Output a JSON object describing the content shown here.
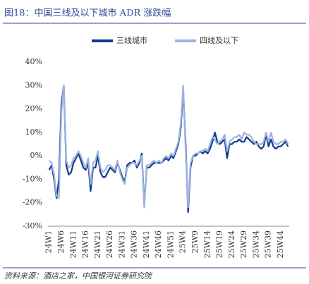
{
  "chart_data": {
    "type": "line",
    "title": "图18：中国三线及以下城市 ADR 涨跌幅",
    "source": "资料来源：酒店之家，中国银河证券研究院",
    "categories": [
      "24W1",
      null,
      null,
      null,
      null,
      "24W6",
      null,
      null,
      null,
      null,
      "24W11",
      null,
      null,
      null,
      null,
      "24W16",
      null,
      null,
      null,
      null,
      "24W21",
      null,
      null,
      null,
      null,
      "24W26",
      null,
      null,
      null,
      null,
      "24W31",
      null,
      null,
      null,
      null,
      "24W36",
      null,
      null,
      null,
      null,
      "24W41",
      null,
      null,
      null,
      null,
      "24W46",
      null,
      null,
      null,
      null,
      "24W51",
      null,
      null,
      null,
      null,
      "25W4",
      null,
      null,
      null,
      null,
      "25W9",
      null,
      null,
      null,
      null,
      "25W14",
      null,
      null,
      null,
      null,
      "25W19",
      null,
      null,
      null,
      null,
      "25W24",
      null,
      null,
      null,
      null,
      "25W29",
      null,
      null,
      null,
      null,
      "25W34",
      null,
      null,
      null,
      null,
      "25W39",
      null,
      null,
      null,
      null,
      "25W44",
      null,
      null,
      null
    ],
    "series": [
      {
        "name": "三线城市",
        "color": "#123a8c",
        "values": [
          -6,
          -4,
          -10,
          -18,
          -10,
          22,
          30,
          -4,
          -8,
          -7,
          -3,
          -1,
          1,
          -2,
          -5,
          -6,
          -3,
          -15,
          -5,
          -5,
          0,
          -7,
          -9,
          -9,
          -7,
          -5,
          -6,
          -7,
          -3,
          -6,
          -9,
          -11,
          -4,
          -3,
          -3,
          -2,
          -5,
          -3,
          1,
          -21,
          -5,
          -5,
          -4,
          -3,
          -3,
          -3,
          -3,
          -2,
          -1,
          -2,
          0,
          -1,
          2,
          5,
          12,
          28,
          5,
          -24,
          -5,
          0,
          0,
          1,
          2,
          1,
          2,
          1,
          3,
          6,
          10,
          6,
          5,
          6,
          7,
          -1,
          5,
          5,
          6,
          6,
          7,
          6,
          6,
          8,
          7,
          6,
          5,
          6,
          4,
          3,
          4,
          9,
          4,
          7,
          4,
          3,
          4,
          4,
          5,
          6,
          4
        ]
      },
      {
        "name": "四线及以下",
        "color": "#9db3e0",
        "values": [
          -2,
          -3,
          -8,
          -17,
          -18,
          18,
          30,
          -2,
          -5,
          -4,
          -1,
          0,
          2,
          0,
          -3,
          -5,
          -1,
          -12,
          -3,
          -2,
          2,
          -5,
          -7,
          -6,
          -4,
          -4,
          -5,
          -6,
          -2,
          -7,
          -10,
          -12,
          -5,
          -4,
          -3,
          -3,
          -4,
          -2,
          0,
          -22,
          -4,
          -4,
          -3,
          -2,
          -3,
          -2,
          -3,
          -1,
          0,
          -1,
          1,
          0,
          3,
          6,
          14,
          30,
          2,
          -22,
          -3,
          0,
          1,
          1,
          2,
          2,
          3,
          2,
          5,
          8,
          7,
          5,
          6,
          7,
          9,
          2,
          6,
          7,
          8,
          8,
          9,
          7,
          10,
          9,
          9,
          8,
          6,
          5,
          5,
          5,
          6,
          10,
          6,
          10,
          6,
          5,
          5,
          6,
          6,
          7,
          5
        ]
      }
    ],
    "ylim": [
      -30,
      40
    ],
    "yticks": [
      {
        "value": -30,
        "label": "-30%"
      },
      {
        "value": -20,
        "label": "-20%"
      },
      {
        "value": -10,
        "label": "-10%"
      },
      {
        "value": 0,
        "label": "0%"
      },
      {
        "value": 10,
        "label": "10%"
      },
      {
        "value": 20,
        "label": "20%"
      },
      {
        "value": 30,
        "label": "30%"
      },
      {
        "value": 40,
        "label": "40%"
      }
    ],
    "grid": false
  }
}
